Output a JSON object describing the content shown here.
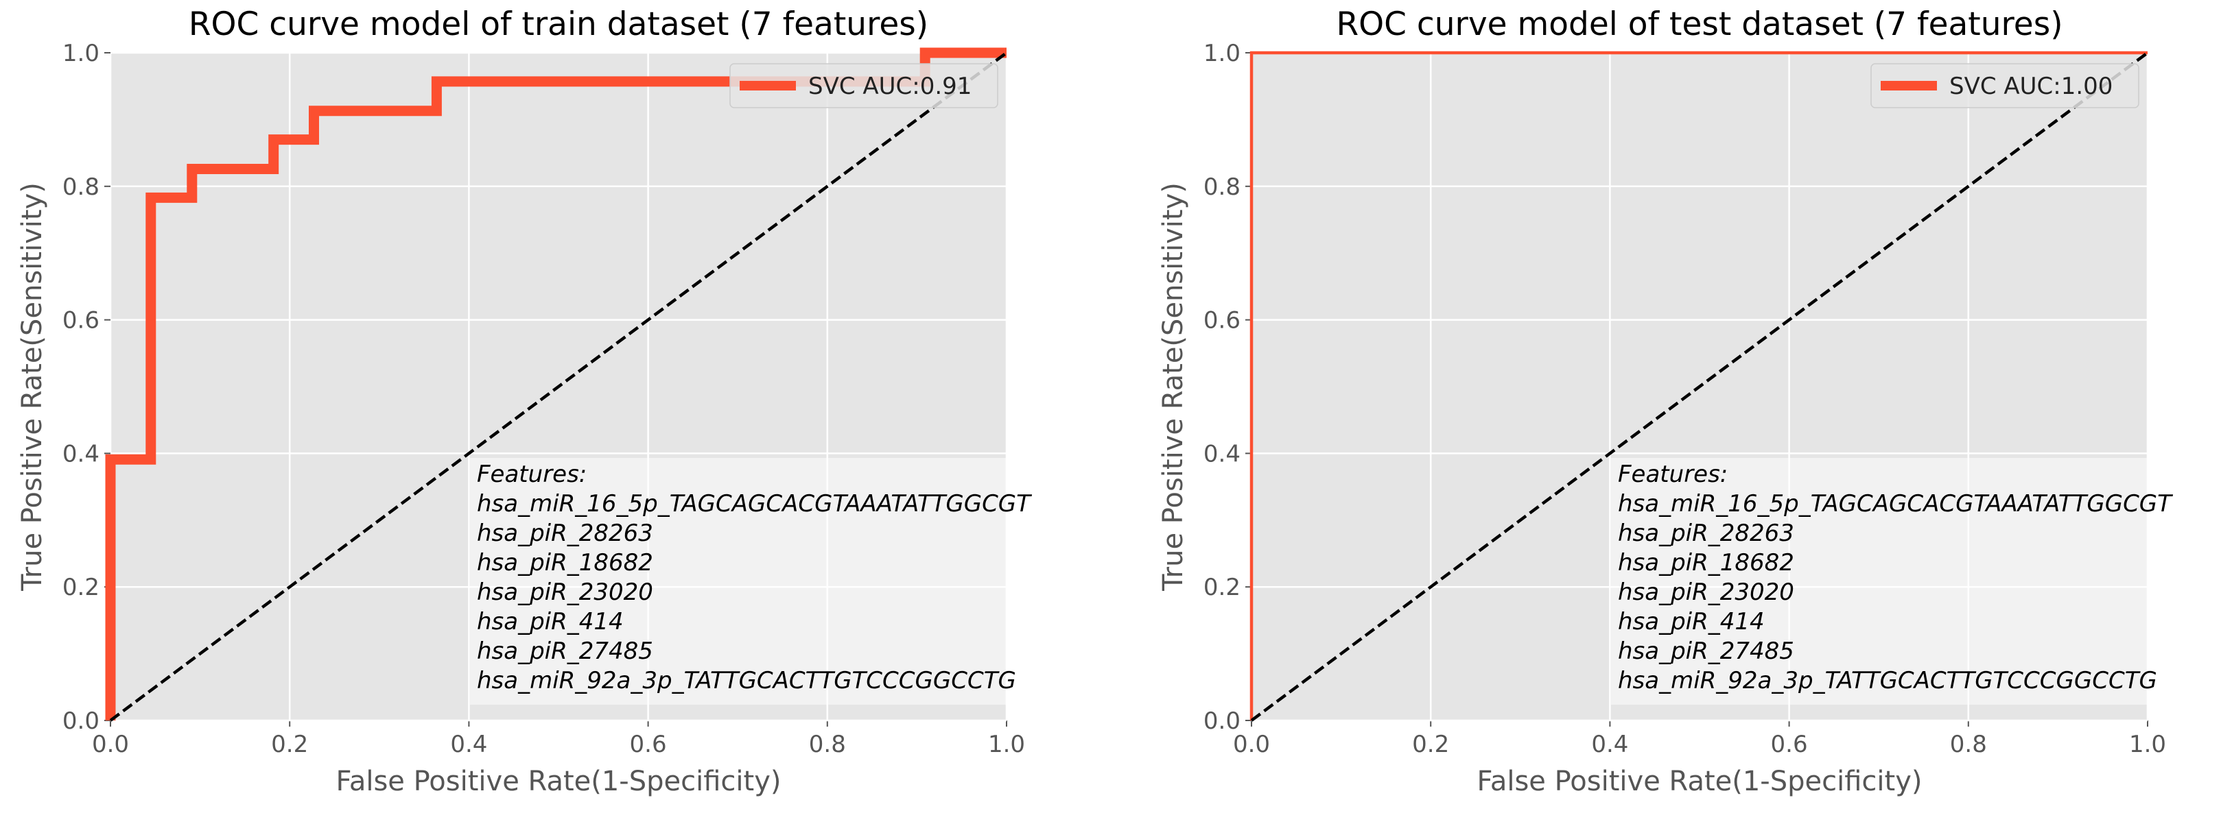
{
  "chart_data": [
    {
      "type": "line",
      "title": "ROC curve model of train dataset (7 features)",
      "xlabel": "False Positive Rate(1-Specificity)",
      "ylabel": "True Positive Rate(Sensitivity)",
      "xlim": [
        0,
        1
      ],
      "ylim": [
        0,
        1
      ],
      "xticks": [
        "0.0",
        "0.2",
        "0.4",
        "0.6",
        "0.8",
        "1.0"
      ],
      "yticks": [
        "0.0",
        "0.2",
        "0.4",
        "0.6",
        "0.8",
        "1.0"
      ],
      "grid": true,
      "legend_position": "top-right",
      "series": [
        {
          "name": "SVC AUC:0.91",
          "color": "#fc4f30",
          "style": "solid-thick",
          "x": [
            0.0,
            0.0,
            0.045,
            0.045,
            0.091,
            0.091,
            0.182,
            0.182,
            0.227,
            0.227,
            0.364,
            0.364,
            0.909,
            0.909,
            1.0
          ],
          "y": [
            0.0,
            0.391,
            0.391,
            0.783,
            0.783,
            0.826,
            0.826,
            0.87,
            0.87,
            0.913,
            0.913,
            0.957,
            0.957,
            1.0,
            1.0
          ]
        },
        {
          "name": "chance",
          "color": "#000000",
          "style": "dashed",
          "x": [
            0,
            1
          ],
          "y": [
            0,
            1
          ]
        }
      ],
      "annotation": {
        "lines": [
          "Features:",
          "hsa_miR_16_5p_TAGCAGCACGTAAATATTGGCGT",
          "hsa_piR_28263",
          "hsa_piR_18682",
          "hsa_piR_23020",
          "hsa_piR_414",
          "hsa_piR_27485",
          "hsa_miR_92a_3p_TATTGCACTTGTCCCGGCCTG"
        ]
      }
    },
    {
      "type": "line",
      "title": "ROC curve model of test dataset (7 features)",
      "xlabel": "False Positive Rate(1-Specificity)",
      "ylabel": "True Positive Rate(Sensitivity)",
      "xlim": [
        0,
        1
      ],
      "ylim": [
        0,
        1
      ],
      "xticks": [
        "0.0",
        "0.2",
        "0.4",
        "0.6",
        "0.8",
        "1.0"
      ],
      "yticks": [
        "0.0",
        "0.2",
        "0.4",
        "0.6",
        "0.8",
        "1.0"
      ],
      "grid": true,
      "legend_position": "top-right",
      "series": [
        {
          "name": "SVC AUC:1.00",
          "color": "#fc4f30",
          "style": "solid-thin",
          "x": [
            0.0,
            0.0,
            1.0
          ],
          "y": [
            0.0,
            1.0,
            1.0
          ]
        },
        {
          "name": "chance",
          "color": "#000000",
          "style": "dashed",
          "x": [
            0,
            1
          ],
          "y": [
            0,
            1
          ]
        }
      ],
      "annotation": {
        "lines": [
          "Features:",
          "hsa_miR_16_5p_TAGCAGCACGTAAATATTGGCGT",
          "hsa_piR_28263",
          "hsa_piR_18682",
          "hsa_piR_23020",
          "hsa_piR_414",
          "hsa_piR_27485",
          "hsa_miR_92a_3p_TATTGCACTTGTCCCGGCCTG"
        ]
      }
    }
  ]
}
